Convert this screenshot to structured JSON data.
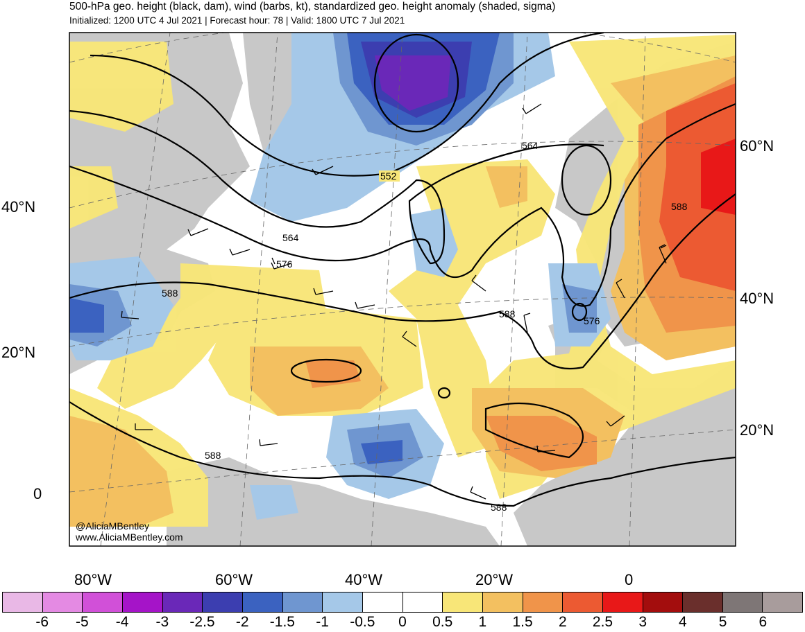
{
  "header": {
    "title": "500-hPa geo. height (black, dam), wind (barbs, kt), standardized geo. height anomaly (shaded, sigma)",
    "subtitle": "Initialized: 1200 UTC 4 Jul 2021 | Forecast hour: 78 | Valid: 1800 UTC 7 Jul 2021"
  },
  "map": {
    "lat_labels_left": [
      "40°N",
      "20°N",
      "0"
    ],
    "lat_labels_right": [
      "60°N",
      "40°N",
      "20°N"
    ],
    "lon_labels": [
      "80°W",
      "60°W",
      "40°W",
      "20°W",
      "0"
    ],
    "contour_labels": [
      "552",
      "564",
      "576",
      "588",
      "564",
      "588",
      "588",
      "576",
      "588",
      "588"
    ],
    "credit_handle": "@AliciaMBentley",
    "credit_site": "www.AliciaMBentley.com"
  },
  "colorbar": {
    "ticks": [
      "-6",
      "-5",
      "-4",
      "-3",
      "-2.5",
      "-2",
      "-1.5",
      "-1",
      "-0.5",
      "0",
      "0.5",
      "1",
      "1.5",
      "2",
      "2.5",
      "3",
      "4",
      "5",
      "6"
    ],
    "colors": [
      "#e9b8e6",
      "#e48ae3",
      "#d150d8",
      "#a514c8",
      "#6a28b8",
      "#3c3eb0",
      "#3b62c0",
      "#6f96d0",
      "#a5c8e8",
      "#ffffff",
      "#ffffff",
      "#f8e678",
      "#f3c060",
      "#f0944a",
      "#ec5a32",
      "#e81818",
      "#a30d0d",
      "#6a2f2c",
      "#7e7676",
      "#a89c9c"
    ],
    "colors_note": ""
  },
  "palette": {
    "land_gray": "#c8c8c8",
    "ocean_white": "#ffffff"
  }
}
